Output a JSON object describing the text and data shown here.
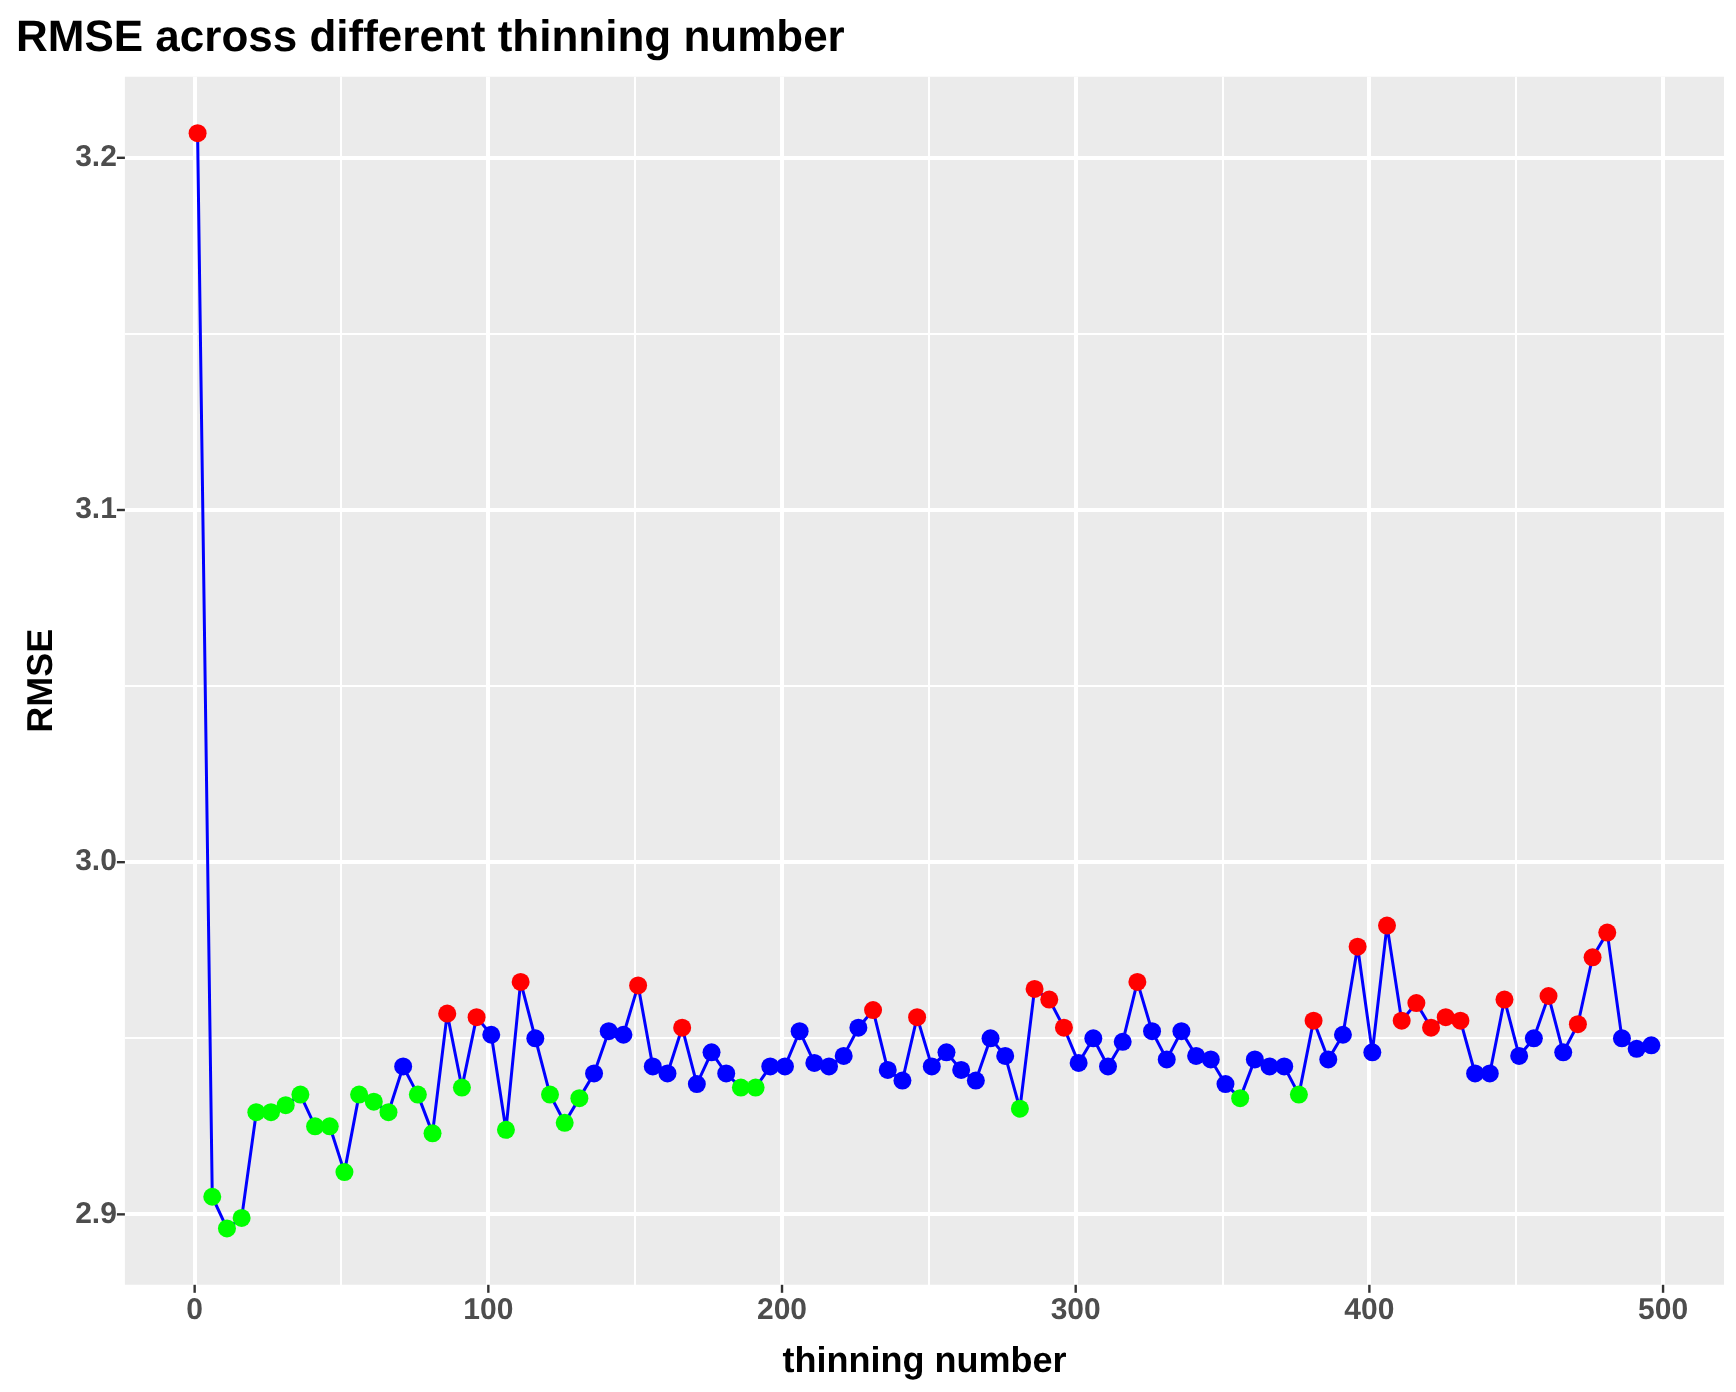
{
  "chart_data": {
    "type": "line",
    "title": "RMSE across different thinning number",
    "xlabel": "thinning number",
    "ylabel": "RMSE",
    "x": [
      1,
      6,
      11,
      16,
      21,
      26,
      31,
      36,
      41,
      46,
      51,
      56,
      61,
      66,
      71,
      76,
      81,
      86,
      91,
      96,
      101,
      106,
      111,
      116,
      121,
      126,
      131,
      136,
      141,
      146,
      151,
      156,
      161,
      166,
      171,
      176,
      181,
      186,
      191,
      196,
      201,
      206,
      211,
      216,
      221,
      226,
      231,
      236,
      241,
      246,
      251,
      256,
      261,
      266,
      271,
      276,
      281,
      286,
      291,
      296,
      301,
      306,
      311,
      316,
      321,
      326,
      331,
      336,
      341,
      346,
      351,
      356,
      361,
      366,
      371,
      376,
      381,
      386,
      391,
      396,
      401,
      406,
      411,
      416,
      421,
      426,
      431,
      436,
      441,
      446,
      451,
      456,
      461,
      466,
      471,
      476,
      481,
      486,
      491,
      496
    ],
    "series": [
      {
        "color": "#0000ff",
        "values": [
          3.207,
          2.905,
          2.896,
          2.899,
          2.929,
          2.929,
          2.931,
          2.934,
          2.925,
          2.925,
          2.912,
          2.934,
          2.932,
          2.929,
          2.942,
          2.934,
          2.923,
          2.957,
          2.936,
          2.956,
          2.951,
          2.924,
          2.966,
          2.95,
          2.934,
          2.926,
          2.933,
          2.94,
          2.952,
          2.951,
          2.965,
          2.942,
          2.94,
          2.953,
          2.937,
          2.946,
          2.94,
          2.936,
          2.936,
          2.942,
          2.942,
          2.952,
          2.943,
          2.942,
          2.945,
          2.953,
          2.958,
          2.941,
          2.938,
          2.956,
          2.942,
          2.946,
          2.941,
          2.938,
          2.95,
          2.945,
          2.93,
          2.964,
          2.961,
          2.953,
          2.943,
          2.95,
          2.942,
          2.949,
          2.966,
          2.952,
          2.944,
          2.952,
          2.945,
          2.944,
          2.937,
          2.933,
          2.944,
          2.942,
          2.942,
          2.934,
          2.955,
          2.944,
          2.951,
          2.976,
          2.946,
          2.982,
          2.955,
          2.96,
          2.953,
          2.956,
          2.955,
          2.94,
          2.94,
          2.961,
          2.945,
          2.95,
          2.962,
          2.946,
          2.954,
          2.973,
          2.98,
          2.95,
          2.947,
          2.948
        ],
        "colors": [
          "#ff0000",
          "#00ff00",
          "#00ff00",
          "#00ff00",
          "#00ff00",
          "#00ff00",
          "#00ff00",
          "#00ff00",
          "#00ff00",
          "#00ff00",
          "#00ff00",
          "#00ff00",
          "#00ff00",
          "#00ff00",
          "#0000ff",
          "#00ff00",
          "#00ff00",
          "#ff0000",
          "#00ff00",
          "#ff0000",
          "#0000ff",
          "#00ff00",
          "#ff0000",
          "#0000ff",
          "#00ff00",
          "#00ff00",
          "#00ff00",
          "#0000ff",
          "#0000ff",
          "#0000ff",
          "#ff0000",
          "#0000ff",
          "#0000ff",
          "#ff0000",
          "#0000ff",
          "#0000ff",
          "#0000ff",
          "#00ff00",
          "#00ff00",
          "#0000ff",
          "#0000ff",
          "#0000ff",
          "#0000ff",
          "#0000ff",
          "#0000ff",
          "#0000ff",
          "#ff0000",
          "#0000ff",
          "#0000ff",
          "#ff0000",
          "#0000ff",
          "#0000ff",
          "#0000ff",
          "#0000ff",
          "#0000ff",
          "#0000ff",
          "#00ff00",
          "#ff0000",
          "#ff0000",
          "#ff0000",
          "#0000ff",
          "#0000ff",
          "#0000ff",
          "#0000ff",
          "#ff0000",
          "#0000ff",
          "#0000ff",
          "#0000ff",
          "#0000ff",
          "#0000ff",
          "#0000ff",
          "#00ff00",
          "#0000ff",
          "#0000ff",
          "#0000ff",
          "#00ff00",
          "#ff0000",
          "#0000ff",
          "#0000ff",
          "#ff0000",
          "#0000ff",
          "#ff0000",
          "#ff0000",
          "#ff0000",
          "#ff0000",
          "#ff0000",
          "#ff0000",
          "#0000ff",
          "#0000ff",
          "#ff0000",
          "#0000ff",
          "#0000ff",
          "#ff0000",
          "#0000ff",
          "#ff0000",
          "#ff0000",
          "#ff0000",
          "#0000ff",
          "#0000ff",
          "#0000ff"
        ]
      }
    ],
    "xlim": [
      -23.75,
      520.75
    ],
    "xticks": [
      0,
      {
        "value": 50,
        "label": null
      },
      100,
      {
        "value": 150,
        "label": null
      },
      200,
      {
        "value": 250,
        "label": null
      },
      300,
      {
        "value": 350,
        "label": null
      },
      400,
      {
        "value": 450,
        "label": null
      },
      500
    ],
    "ylim": [
      2.88,
      3.223
    ],
    "yticks": [
      {
        "value": 2.9,
        "label": "2.9"
      },
      {
        "value": 2.95,
        "label": null
      },
      {
        "value": 3.0,
        "label": "3.0"
      },
      {
        "value": 3.05,
        "label": null
      },
      {
        "value": 3.1,
        "label": "3.1"
      },
      {
        "value": 3.15,
        "label": null
      },
      {
        "value": 3.2,
        "label": "3.2"
      }
    ],
    "grid": true,
    "legend": false,
    "marker": "circle",
    "line_style": "solid"
  }
}
